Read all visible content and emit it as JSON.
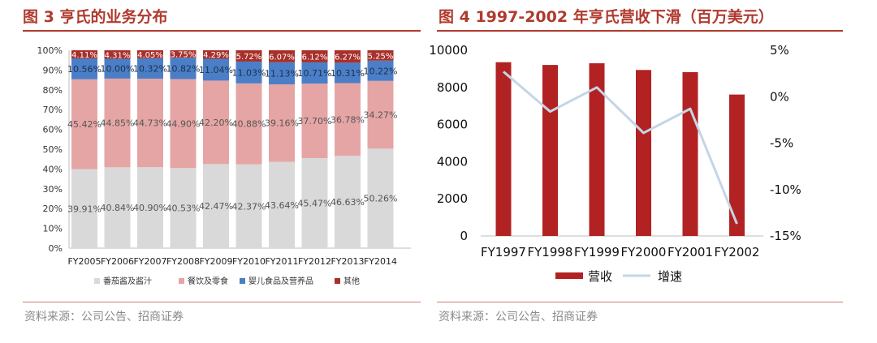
{
  "chart_data": [
    {
      "type": "bar",
      "stacked": true,
      "title": "图 3 亨氏的业务分布",
      "source": "资料来源：公司公告、招商证券",
      "categories": [
        "FY2005",
        "FY2006",
        "FY2007",
        "FY2008",
        "FY2009",
        "FY2010",
        "FY2011",
        "FY2012",
        "FY2013",
        "FY2014"
      ],
      "y_ticks": [
        "0%",
        "10%",
        "20%",
        "30%",
        "40%",
        "50%",
        "60%",
        "70%",
        "80%",
        "90%",
        "100%"
      ],
      "ylim": [
        0,
        100
      ],
      "legend_position": "bottom",
      "series": [
        {
          "name": "番茄酱及酱汁",
          "color": "#d9d9d9",
          "values": [
            39.91,
            40.84,
            40.9,
            40.53,
            42.47,
            42.37,
            43.64,
            45.47,
            46.63,
            50.26
          ],
          "labels": [
            "39.91%",
            "40.84%",
            "40.90%",
            "40.53%",
            "42.47%",
            "42.37%",
            "43.64%",
            "45.47%",
            "46.63%",
            "50.26%"
          ]
        },
        {
          "name": "餐饮及零食",
          "color": "#e6a5a5",
          "values": [
            45.42,
            44.85,
            44.73,
            44.9,
            42.2,
            40.88,
            39.16,
            37.7,
            36.78,
            34.27
          ],
          "labels": [
            "45.42%",
            "44.85%",
            "44.73%",
            "44.90%",
            "42.20%",
            "40.88%",
            "39.16%",
            "37.70%",
            "36.78%",
            "34.27%"
          ]
        },
        {
          "name": "婴儿食品及营养品",
          "color": "#4a7fc8",
          "values": [
            10.56,
            10.0,
            10.32,
            10.82,
            11.04,
            11.03,
            11.13,
            10.71,
            10.31,
            10.22
          ],
          "labels": [
            "10.56%",
            "10.00%",
            "10.32%",
            "10.82%",
            "11.04%",
            "11.03%",
            "11.13%",
            "10.71%",
            "10.31%",
            "10.22%"
          ]
        },
        {
          "name": "其他",
          "color": "#a8302a",
          "values": [
            4.11,
            4.31,
            4.05,
            3.75,
            4.29,
            5.72,
            6.07,
            6.12,
            6.27,
            5.25
          ],
          "labels": [
            "4.11%",
            "4.31%",
            "4.05%",
            "3.75%",
            "4.29%",
            "5.72%",
            "6.07%",
            "6.12%",
            "6.27%",
            "5.25%"
          ]
        }
      ]
    },
    {
      "type": "bar+line",
      "title": "图 4 1997-2002 年亨氏营收下滑（百万美元）",
      "source": "资料来源：公司公告、招商证券",
      "categories": [
        "FY1997",
        "FY1998",
        "FY1999",
        "FY2000",
        "FY2001",
        "FY2002"
      ],
      "y_left_ticks": [
        "0",
        "2000",
        "4000",
        "6000",
        "8000",
        "10000"
      ],
      "ylim_left": [
        0,
        10000
      ],
      "y_right_ticks": [
        "5%",
        "0%",
        "-5%",
        "-10%",
        "-15%"
      ],
      "ylim_right": [
        -15,
        5
      ],
      "legend_position": "bottom",
      "series": [
        {
          "name": "营收",
          "type": "bar",
          "axis": "left",
          "color": "#b22222",
          "values": [
            9357,
            9209,
            9300,
            8939,
            8821,
            7615
          ]
        },
        {
          "name": "增速",
          "type": "line",
          "axis": "right",
          "color": "#c5d5e6",
          "values": [
            2.7,
            -1.6,
            1.0,
            -3.9,
            -1.3,
            -13.7
          ]
        }
      ]
    }
  ]
}
